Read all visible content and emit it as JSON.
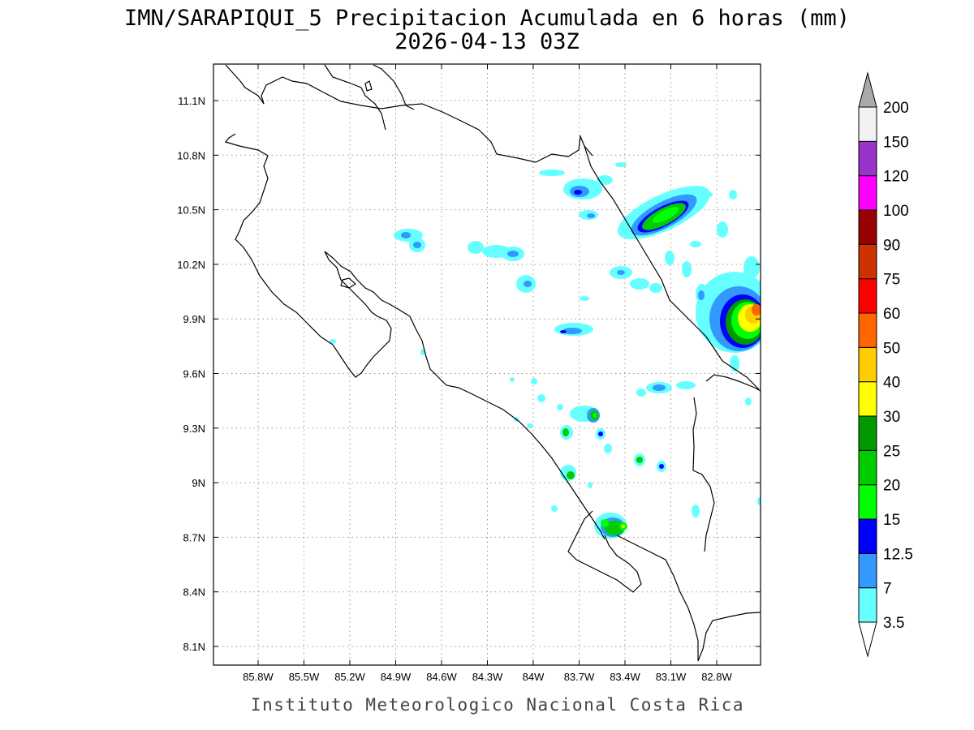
{
  "title": {
    "line1": "IMN/SARAPIQUI_5 Precipitacion Acumulada en 6 horas (mm)",
    "line2": "2026-04-13 03Z"
  },
  "footer": "Instituto Meteorologico Nacional Costa Rica",
  "map": {
    "lon_range": [
      -86.0,
      -83.0
    ],
    "lat_range": [
      8.0,
      11.2
    ],
    "x_ticks": [
      {
        "lon": -85.8,
        "label": "85.8W"
      },
      {
        "lon": -85.5,
        "label": "85.5W"
      },
      {
        "lon": -85.2,
        "label": "85.2W"
      },
      {
        "lon": -84.9,
        "label": "84.9W"
      },
      {
        "lon": -84.6,
        "label": "84.6W"
      },
      {
        "lon": -84.3,
        "label": "84.3W"
      },
      {
        "lon": -84.0,
        "label": "84W"
      },
      {
        "lon": -83.7,
        "label": "83.7W"
      },
      {
        "lon": -83.4,
        "label": "83.4W"
      },
      {
        "lon": -83.1,
        "label": "83.1W"
      },
      {
        "lon": -82.8,
        "label": "82.8W"
      }
    ],
    "y_ticks": [
      {
        "lat": 11.1,
        "label": "11.1N"
      },
      {
        "lat": 10.8,
        "label": "10.8N"
      },
      {
        "lat": 10.5,
        "label": "10.5N"
      },
      {
        "lat": 10.2,
        "label": "10.2N"
      },
      {
        "lat": 9.9,
        "label": "9.9N"
      },
      {
        "lat": 9.6,
        "label": "9.6N"
      },
      {
        "lat": 9.3,
        "label": "9.3N"
      },
      {
        "lat": 9.0,
        "label": "9N"
      },
      {
        "lat": 8.7,
        "label": "8.7N"
      },
      {
        "lat": 8.4,
        "label": "8.4N"
      },
      {
        "lat": 8.1,
        "label": "8.1N"
      }
    ],
    "grid": true
  },
  "colorbar": {
    "levels": [
      "3.5",
      "7",
      "12.5",
      "15",
      "20",
      "25",
      "30",
      "40",
      "50",
      "60",
      "75",
      "90",
      "100",
      "120",
      "150",
      "200"
    ],
    "colors": [
      "#ffffff",
      "#66ffff",
      "#3399ff",
      "#0000ff",
      "#00ff00",
      "#00cc00",
      "#009900",
      "#ffff00",
      "#ffcc00",
      "#ff6600",
      "#ff0000",
      "#cc3300",
      "#990000",
      "#ff00ff",
      "#9933cc",
      "#f2f2f2",
      "#aaaaaa"
    ]
  },
  "precip_cells": [
    {
      "lon": -83.35,
      "lat": 10.48,
      "value": 30
    },
    {
      "lon": -83.55,
      "lat": 10.62,
      "value": 12.5
    },
    {
      "lon": -83.68,
      "lat": 10.72,
      "value": 3.5
    },
    {
      "lon": -83.22,
      "lat": 10.2,
      "value": 7
    },
    {
      "lon": -84.72,
      "lat": 10.34,
      "value": 12.5
    },
    {
      "lon": -84.12,
      "lat": 10.25,
      "value": 7
    },
    {
      "lon": -84.0,
      "lat": 10.12,
      "value": 12.5
    },
    {
      "lon": -83.88,
      "lat": 9.84,
      "value": 12.5
    },
    {
      "lon": -83.05,
      "lat": 9.52,
      "value": 12.5
    },
    {
      "lon": -83.55,
      "lat": 9.38,
      "value": 25
    },
    {
      "lon": -83.72,
      "lat": 9.27,
      "value": 25
    },
    {
      "lon": -83.55,
      "lat": 9.26,
      "value": 12.5
    },
    {
      "lon": -83.31,
      "lat": 9.13,
      "value": 20
    },
    {
      "lon": -83.15,
      "lat": 9.08,
      "value": 12.5
    },
    {
      "lon": -83.7,
      "lat": 9.05,
      "value": 20
    },
    {
      "lon": -83.43,
      "lat": 8.77,
      "value": 30
    },
    {
      "lon": -82.85,
      "lat": 9.92,
      "value": 60
    }
  ]
}
